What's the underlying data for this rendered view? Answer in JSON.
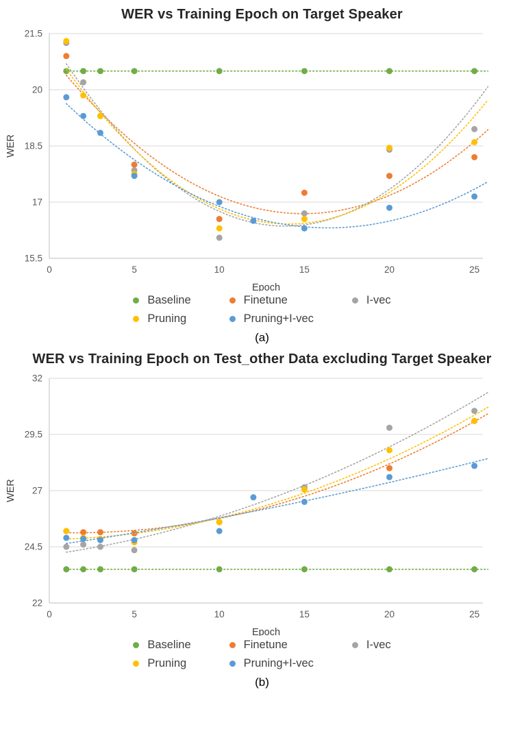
{
  "chart_data": [
    {
      "type": "scatter",
      "title": "WER vs Training Epoch on Target Speaker",
      "caption": "(a)",
      "xlabel": "Epoch",
      "ylabel": "WER",
      "xlim": [
        0,
        25.5
      ],
      "ylim": [
        15.5,
        21.5
      ],
      "xticks": [
        0,
        5,
        10,
        15,
        20,
        25
      ],
      "yticks": [
        15.5,
        17,
        18.5,
        20,
        21.5
      ],
      "grid": "horizontal",
      "legend_position": "bottom",
      "trendline": "quadratic-dotted",
      "series": [
        {
          "name": "Baseline",
          "color": "#70AD47",
          "points": [
            [
              1,
              20.5
            ],
            [
              2,
              20.5
            ],
            [
              3,
              20.5
            ],
            [
              5,
              20.5
            ],
            [
              10,
              20.5
            ],
            [
              15,
              20.5
            ],
            [
              20,
              20.5
            ],
            [
              25,
              20.5
            ]
          ]
        },
        {
          "name": "Finetune",
          "color": "#ED7D31",
          "points": [
            [
              1,
              20.9
            ],
            [
              5,
              18.0
            ],
            [
              10,
              16.55
            ],
            [
              15,
              17.25
            ],
            [
              20,
              17.7
            ],
            [
              25,
              18.2
            ]
          ]
        },
        {
          "name": "I-vec",
          "color": "#A5A5A5",
          "points": [
            [
              1,
              21.25
            ],
            [
              2,
              20.2
            ],
            [
              3,
              19.3
            ],
            [
              5,
              17.85
            ],
            [
              10,
              16.05
            ],
            [
              15,
              16.7
            ],
            [
              20,
              18.4
            ],
            [
              25,
              18.95
            ]
          ]
        },
        {
          "name": "Pruning",
          "color": "#FFC000",
          "points": [
            [
              1,
              21.3
            ],
            [
              2,
              19.85
            ],
            [
              3,
              19.3
            ],
            [
              5,
              17.75
            ],
            [
              10,
              16.3
            ],
            [
              15,
              16.55
            ],
            [
              20,
              18.45
            ],
            [
              25,
              18.6
            ]
          ]
        },
        {
          "name": "Pruning+I-vec",
          "color": "#5B9BD5",
          "points": [
            [
              1,
              19.8
            ],
            [
              2,
              19.3
            ],
            [
              3,
              18.85
            ],
            [
              5,
              17.7
            ],
            [
              10,
              17.0
            ],
            [
              12,
              16.5
            ],
            [
              15,
              16.3
            ],
            [
              20,
              16.85
            ],
            [
              25,
              17.15
            ]
          ]
        }
      ]
    },
    {
      "type": "scatter",
      "title": "WER vs Training Epoch on Test_other Data excluding Target Speaker",
      "caption": "(b)",
      "xlabel": "Epoch",
      "ylabel": "WER",
      "xlim": [
        0,
        25.5
      ],
      "ylim": [
        22,
        32
      ],
      "xticks": [
        0,
        5,
        10,
        15,
        20,
        25
      ],
      "yticks": [
        22,
        24.5,
        27,
        29.5,
        32
      ],
      "grid": "horizontal",
      "legend_position": "bottom",
      "trendline": "quadratic-dotted",
      "series": [
        {
          "name": "Baseline",
          "color": "#70AD47",
          "points": [
            [
              1,
              23.5
            ],
            [
              2,
              23.5
            ],
            [
              3,
              23.5
            ],
            [
              5,
              23.5
            ],
            [
              10,
              23.5
            ],
            [
              15,
              23.5
            ],
            [
              20,
              23.5
            ],
            [
              25,
              23.5
            ]
          ]
        },
        {
          "name": "Finetune",
          "color": "#ED7D31",
          "points": [
            [
              1,
              25.2
            ],
            [
              2,
              25.15
            ],
            [
              3,
              25.15
            ],
            [
              5,
              25.1
            ],
            [
              10,
              25.6
            ],
            [
              15,
              27.1
            ],
            [
              20,
              28.0
            ],
            [
              25,
              30.1
            ]
          ]
        },
        {
          "name": "I-vec",
          "color": "#A5A5A5",
          "points": [
            [
              1,
              24.5
            ],
            [
              2,
              24.6
            ],
            [
              3,
              24.5
            ],
            [
              5,
              24.35
            ],
            [
              10,
              25.6
            ],
            [
              15,
              27.15
            ],
            [
              20,
              29.8
            ],
            [
              25,
              30.55
            ]
          ]
        },
        {
          "name": "Pruning",
          "color": "#FFC000",
          "points": [
            [
              1,
              25.2
            ],
            [
              2,
              24.9
            ],
            [
              3,
              24.85
            ],
            [
              5,
              24.7
            ],
            [
              10,
              25.6
            ],
            [
              15,
              27.05
            ],
            [
              20,
              28.8
            ],
            [
              25,
              30.1
            ]
          ]
        },
        {
          "name": "Pruning+I-vec",
          "color": "#5B9BD5",
          "points": [
            [
              1,
              24.9
            ],
            [
              2,
              24.85
            ],
            [
              3,
              24.8
            ],
            [
              5,
              24.8
            ],
            [
              10,
              25.2
            ],
            [
              12,
              26.7
            ],
            [
              15,
              26.5
            ],
            [
              20,
              27.6
            ],
            [
              25,
              28.1
            ]
          ]
        }
      ]
    }
  ]
}
